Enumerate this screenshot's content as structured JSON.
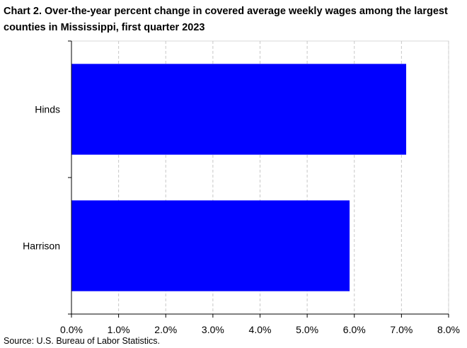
{
  "chart_data": {
    "type": "bar",
    "orientation": "horizontal",
    "title": "Chart 2. Over-the-year percent change in covered average weekly wages among the largest counties in Mississippi,  first quarter 2023",
    "categories": [
      "Hinds",
      "Harrison"
    ],
    "values": [
      7.1,
      5.9
    ],
    "xlim": [
      0,
      8
    ],
    "x_ticks": [
      0,
      1,
      2,
      3,
      4,
      5,
      6,
      7,
      8
    ],
    "x_tick_labels": [
      "0.0%",
      "1.0%",
      "2.0%",
      "3.0%",
      "4.0%",
      "5.0%",
      "6.0%",
      "7.0%",
      "8.0%"
    ],
    "xlabel": "",
    "ylabel": "",
    "grid": "vertical dashed",
    "legend": "none",
    "bar_color": "#0000FF",
    "grid_color": "#C8C8C8",
    "axis_color": "#000000",
    "source": "Source: U.S. Bureau of Labor Statistics."
  }
}
